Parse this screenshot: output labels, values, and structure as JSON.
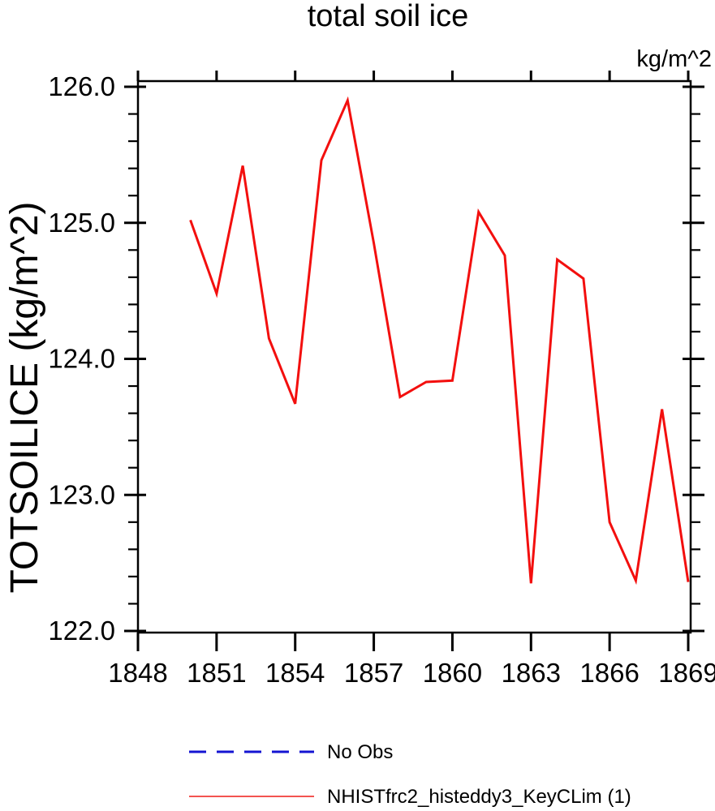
{
  "chart_data": {
    "type": "line",
    "title": "total soil ice",
    "units_label": "kg/m^2",
    "xlabel": "",
    "ylabel": "TOTSOILICE  (kg/m^2)",
    "xlim": [
      1848,
      1869
    ],
    "ylim": [
      122.0,
      126.0
    ],
    "grid": false,
    "x_major_ticks": [
      1848,
      1851,
      1854,
      1857,
      1860,
      1863,
      1866,
      1869
    ],
    "x_tick_labels": [
      "1848",
      "1851",
      "1854",
      "1857",
      "1860",
      "1863",
      "1866",
      "1869"
    ],
    "y_major_ticks": [
      122.0,
      123.0,
      124.0,
      125.0,
      126.0
    ],
    "y_tick_labels": [
      "122.0",
      "123.0",
      "124.0",
      "125.0",
      "126.0"
    ],
    "y_minor_step": 0.2,
    "x": [
      1850,
      1851,
      1852,
      1853,
      1854,
      1855,
      1856,
      1857,
      1858,
      1859,
      1860,
      1861,
      1862,
      1863,
      1864,
      1865,
      1866,
      1867,
      1868,
      1869
    ],
    "series": [
      {
        "name": "NHISTfrc2_histeddy3_KeyCLim (1)",
        "color": "#f30f0e",
        "line_width": 3,
        "values": [
          125.02,
          124.48,
          125.42,
          124.15,
          123.67,
          125.46,
          125.9,
          124.85,
          123.72,
          123.83,
          123.84,
          125.08,
          124.76,
          122.35,
          124.73,
          124.59,
          122.8,
          122.37,
          123.63,
          122.36
        ]
      }
    ],
    "legend": {
      "position": "bottom",
      "entries": [
        {
          "label": "No Obs",
          "color": "#1414d2",
          "dashed": true,
          "line_width": 3
        },
        {
          "label": "NHISTfrc2_histeddy3_KeyCLim (1)",
          "color": "#f35450",
          "dashed": false,
          "line_width": 2
        }
      ]
    },
    "frame_color": "#000000"
  }
}
